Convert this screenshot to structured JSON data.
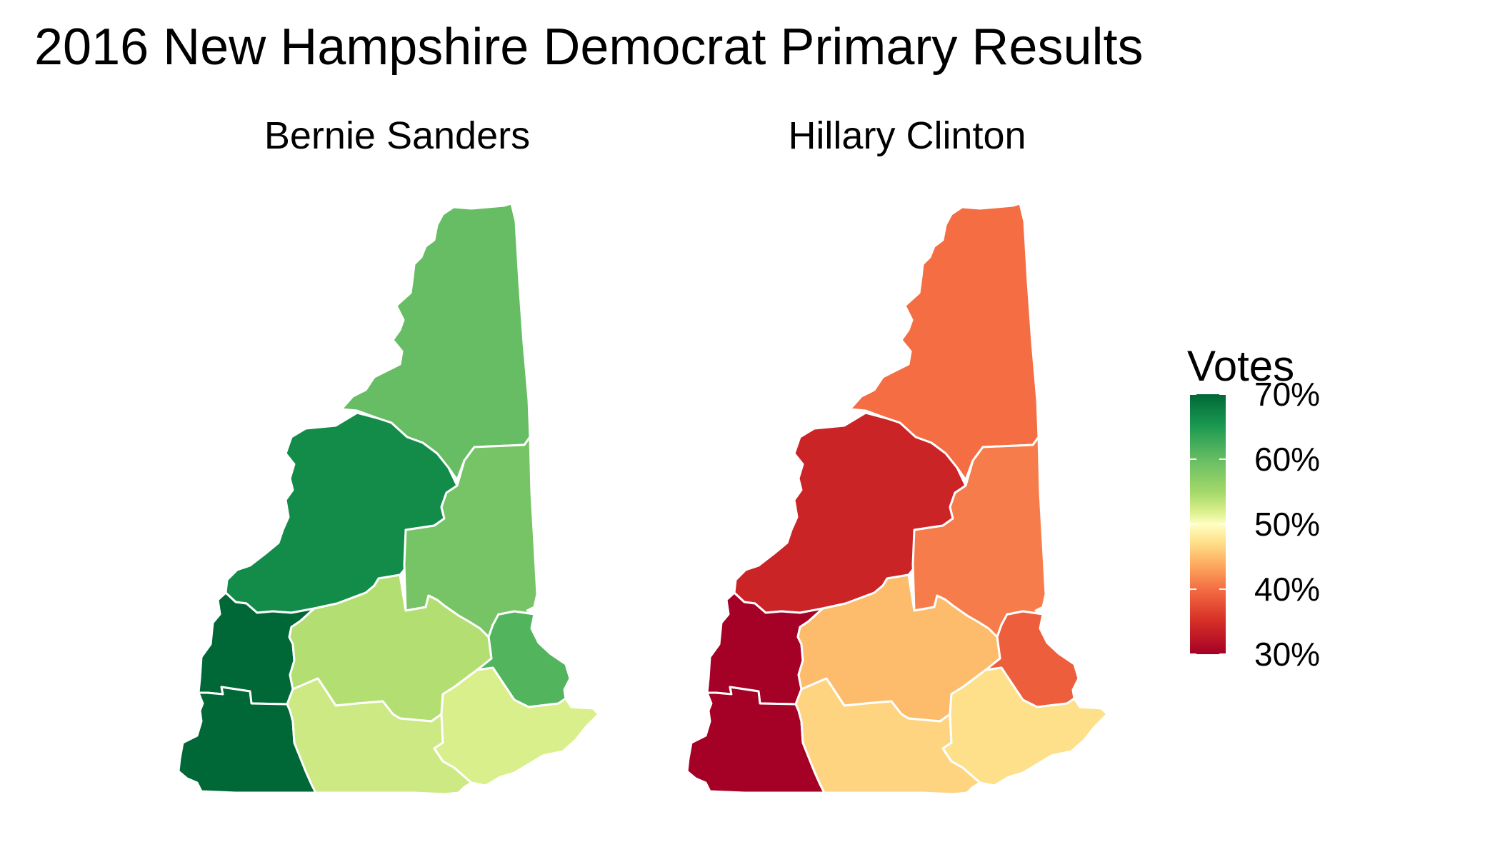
{
  "title": "2016 New Hampshire Democrat Primary Results",
  "panels": [
    {
      "name": "Bernie Sanders"
    },
    {
      "name": "Hillary Clinton"
    }
  ],
  "legend": {
    "title": "Votes",
    "labels": [
      "70%",
      "60%",
      "50%",
      "40%",
      "30%"
    ],
    "values": [
      0.7,
      0.6,
      0.5,
      0.4,
      0.3
    ],
    "color_scale": [
      "#a50026",
      "#d73027",
      "#f46d43",
      "#fdae61",
      "#fee08b",
      "#ffffbf",
      "#d9ef8b",
      "#a6d96a",
      "#66bd63",
      "#1a9850",
      "#006837"
    ],
    "color_scale_values": [
      0.3,
      0.34,
      0.38,
      0.42,
      0.46,
      0.5,
      0.54,
      0.58,
      0.62,
      0.66,
      0.7
    ]
  },
  "counties": [
    {
      "id": "coos",
      "sanders": 0.62,
      "clinton": 0.38
    },
    {
      "id": "grafton",
      "sanders": 0.67,
      "clinton": 0.33
    },
    {
      "id": "carroll",
      "sanders": 0.61,
      "clinton": 0.39
    },
    {
      "id": "sullivan",
      "sanders": 0.7,
      "clinton": 0.3
    },
    {
      "id": "cheshire",
      "sanders": 0.7,
      "clinton": 0.3
    },
    {
      "id": "belknap",
      "sanders": 0.6,
      "clinton": 0.4
    },
    {
      "id": "strafford",
      "sanders": 0.63,
      "clinton": 0.37
    },
    {
      "id": "merrimack",
      "sanders": 0.57,
      "clinton": 0.43
    },
    {
      "id": "hillsborough",
      "sanders": 0.55,
      "clinton": 0.45
    },
    {
      "id": "rockingham",
      "sanders": 0.54,
      "clinton": 0.46
    }
  ]
}
